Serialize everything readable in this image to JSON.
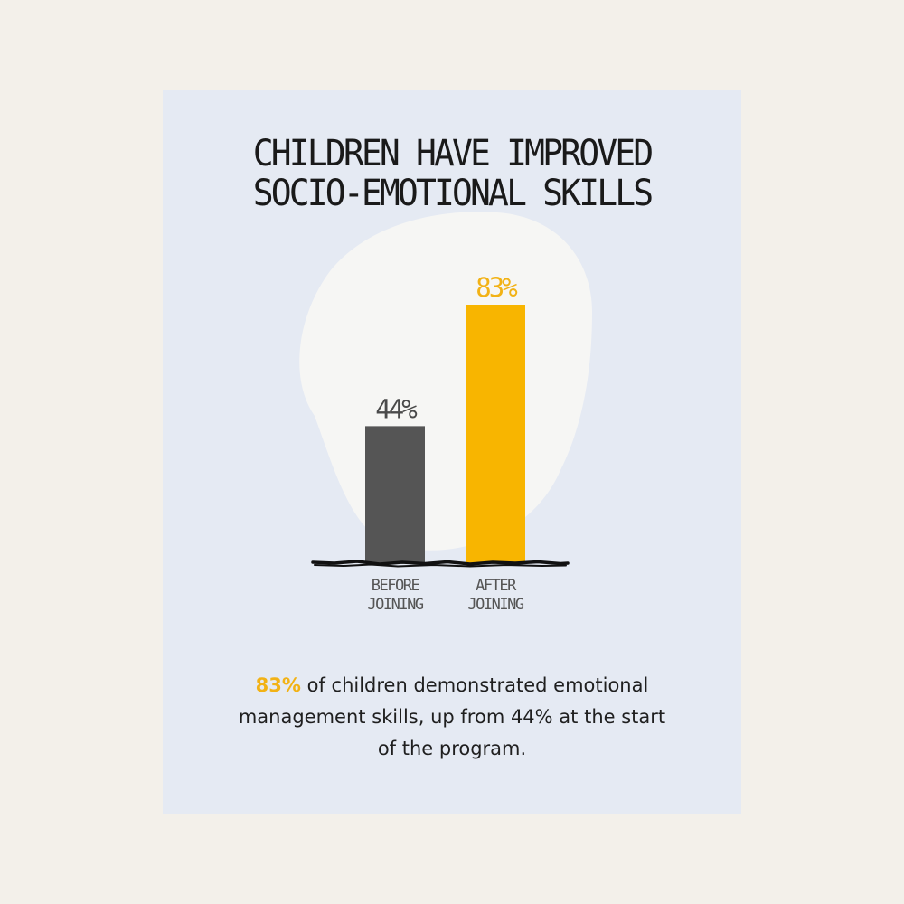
{
  "title_lines": [
    "CHILDREN HAVE IMPROVED",
    "SOCIO-EMOTIONAL SKILLS"
  ],
  "colors": {
    "background": "#f3f0ea",
    "card": "#e5eaf3",
    "blob": "#f6f6f4",
    "before_bar": "#555555",
    "after_bar": "#f8b500",
    "highlight": "#f2b215",
    "text": "#1f1f1f"
  },
  "chart_data": {
    "type": "bar",
    "title": "CHILDREN HAVE IMPROVED SOCIO-EMOTIONAL SKILLS",
    "categories": [
      {
        "label_lines": [
          "BEFORE",
          "JOINING"
        ],
        "value": 44,
        "value_label": "44%",
        "color": "#555555"
      },
      {
        "label_lines": [
          "AFTER",
          "JOINING"
        ],
        "value": 83,
        "value_label": "83%",
        "color": "#f8b500"
      }
    ],
    "values": [
      44,
      83
    ],
    "unit": "%",
    "xlabel": "",
    "ylabel": "",
    "ylim": [
      0,
      100
    ],
    "grid": false,
    "legend": "none"
  },
  "caption": {
    "highlight": "83%",
    "rest": " of children demonstrated emotional management skills, up from 44% at the start of the program."
  }
}
